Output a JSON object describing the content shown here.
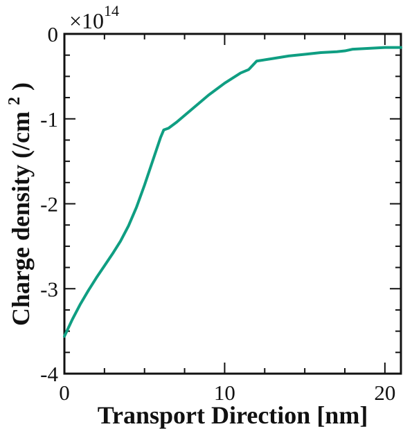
{
  "chart_data": {
    "type": "line",
    "title": "",
    "xlabel": "Transport Direction [nm]",
    "ylabel": "Charge density (/cm",
    "ylabel_superscript": "2",
    "ylabel_suffix": ")",
    "y_multiplier": {
      "text": "×10",
      "exponent": "14"
    },
    "xlim": [
      0,
      21
    ],
    "ylim": [
      -4,
      0
    ],
    "x_ticks": [
      0,
      10,
      20
    ],
    "x_tick_labels": [
      "0",
      "10",
      "20"
    ],
    "y_ticks": [
      0,
      -1,
      -2,
      -3,
      -4
    ],
    "y_tick_labels": [
      "0",
      "-1",
      "-2",
      "-3",
      "-4"
    ],
    "grid": false,
    "legend": "none",
    "line_color": "#0f9e82",
    "series": [
      {
        "name": "",
        "x": [
          0,
          0.5,
          1,
          1.5,
          2,
          2.5,
          3,
          3.5,
          4,
          4.5,
          5,
          5.5,
          6,
          6.2,
          6.5,
          7,
          8,
          9,
          10,
          11,
          11.5,
          12,
          13,
          14,
          15,
          16,
          17,
          17.5,
          18,
          19,
          20,
          21
        ],
        "values": [
          -3.56,
          -3.36,
          -3.18,
          -3.02,
          -2.87,
          -2.73,
          -2.59,
          -2.44,
          -2.26,
          -2.04,
          -1.78,
          -1.5,
          -1.22,
          -1.13,
          -1.11,
          -1.04,
          -0.88,
          -0.72,
          -0.58,
          -0.46,
          -0.42,
          -0.32,
          -0.29,
          -0.26,
          -0.24,
          -0.22,
          -0.21,
          -0.2,
          -0.18,
          -0.17,
          -0.16,
          -0.16
        ]
      }
    ]
  }
}
